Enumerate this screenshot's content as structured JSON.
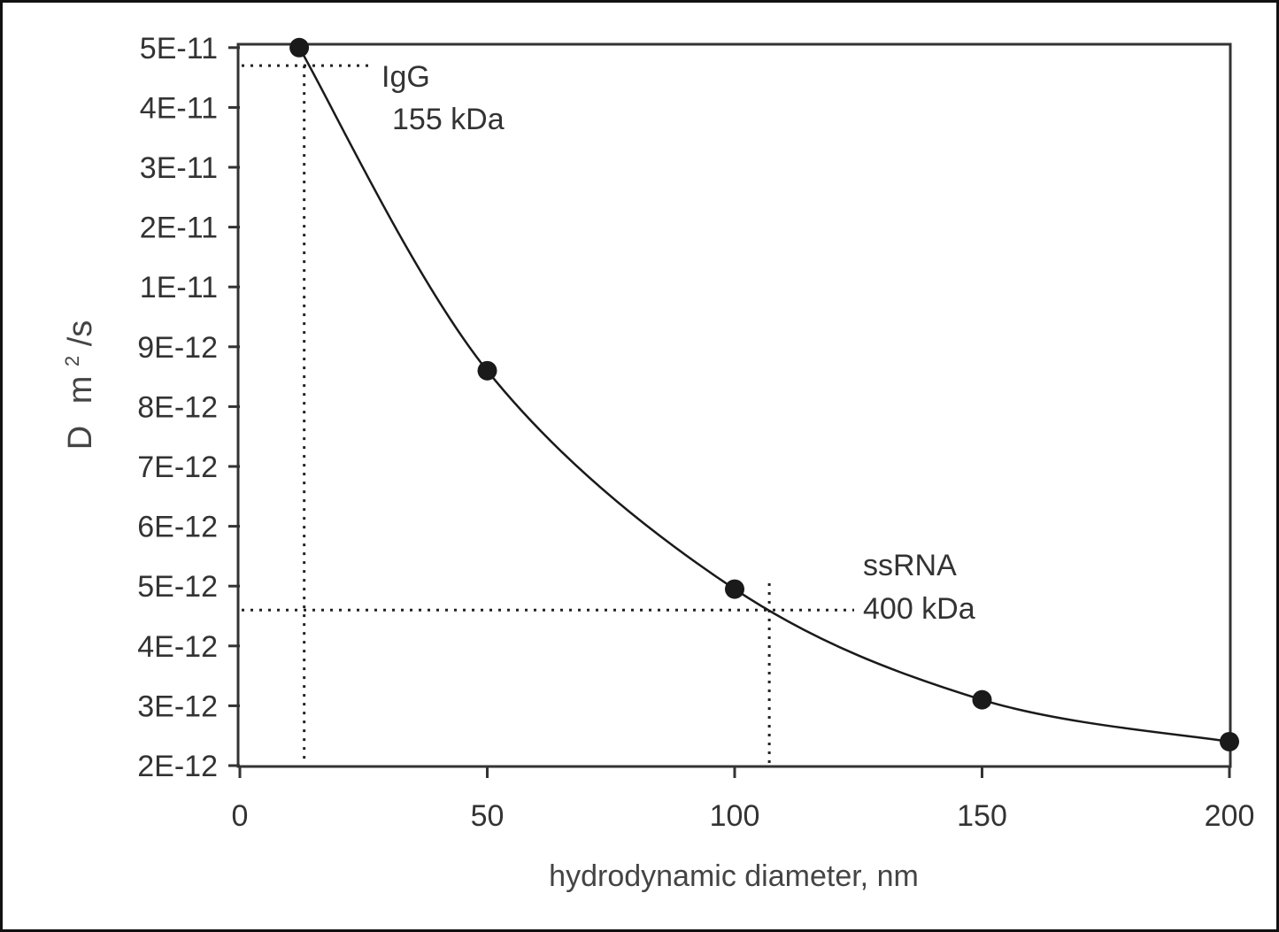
{
  "chart_data": {
    "type": "line",
    "title": "",
    "xlabel": "hydrodynamic diameter, nm",
    "ylabel_main": "D",
    "ylabel_unit_m": "m",
    "ylabel_unit_sup": "2",
    "ylabel_unit_tail": "/s",
    "xlim": [
      0,
      200
    ],
    "x_ticks": [
      "0",
      "50",
      "100",
      "150",
      "200"
    ],
    "x_tick_values": [
      0,
      50,
      100,
      150,
      200
    ],
    "y_scale": "categorical-ticks",
    "y_ticks": [
      "2E-12",
      "3E-12",
      "4E-12",
      "5E-12",
      "6E-12",
      "7E-12",
      "8E-12",
      "9E-12",
      "1E-11",
      "2E-11",
      "3E-11",
      "4E-11",
      "5E-11"
    ],
    "grid": false,
    "series": [
      {
        "points": [
          {
            "x": 12,
            "y": "5E-11"
          },
          {
            "x": 50,
            "y": "8.6E-12"
          },
          {
            "x": 100,
            "y": "4.95E-12"
          },
          {
            "x": 150,
            "y": "3.1E-12"
          },
          {
            "x": 200,
            "y": "2.4E-12"
          }
        ]
      }
    ],
    "annotations": [
      {
        "name": "igg",
        "line1": "IgG",
        "line2": "155 kDa",
        "x": 13,
        "y": "4.7E-11"
      },
      {
        "name": "ssrna",
        "line1": "ssRNA",
        "line2": "400 kDa",
        "x": 107,
        "y": "4.6E-12"
      }
    ]
  },
  "colors": {
    "curve": "#1a1a1a",
    "marker": "#1a1a1a",
    "axis": "#333333",
    "guide": "#222222"
  }
}
